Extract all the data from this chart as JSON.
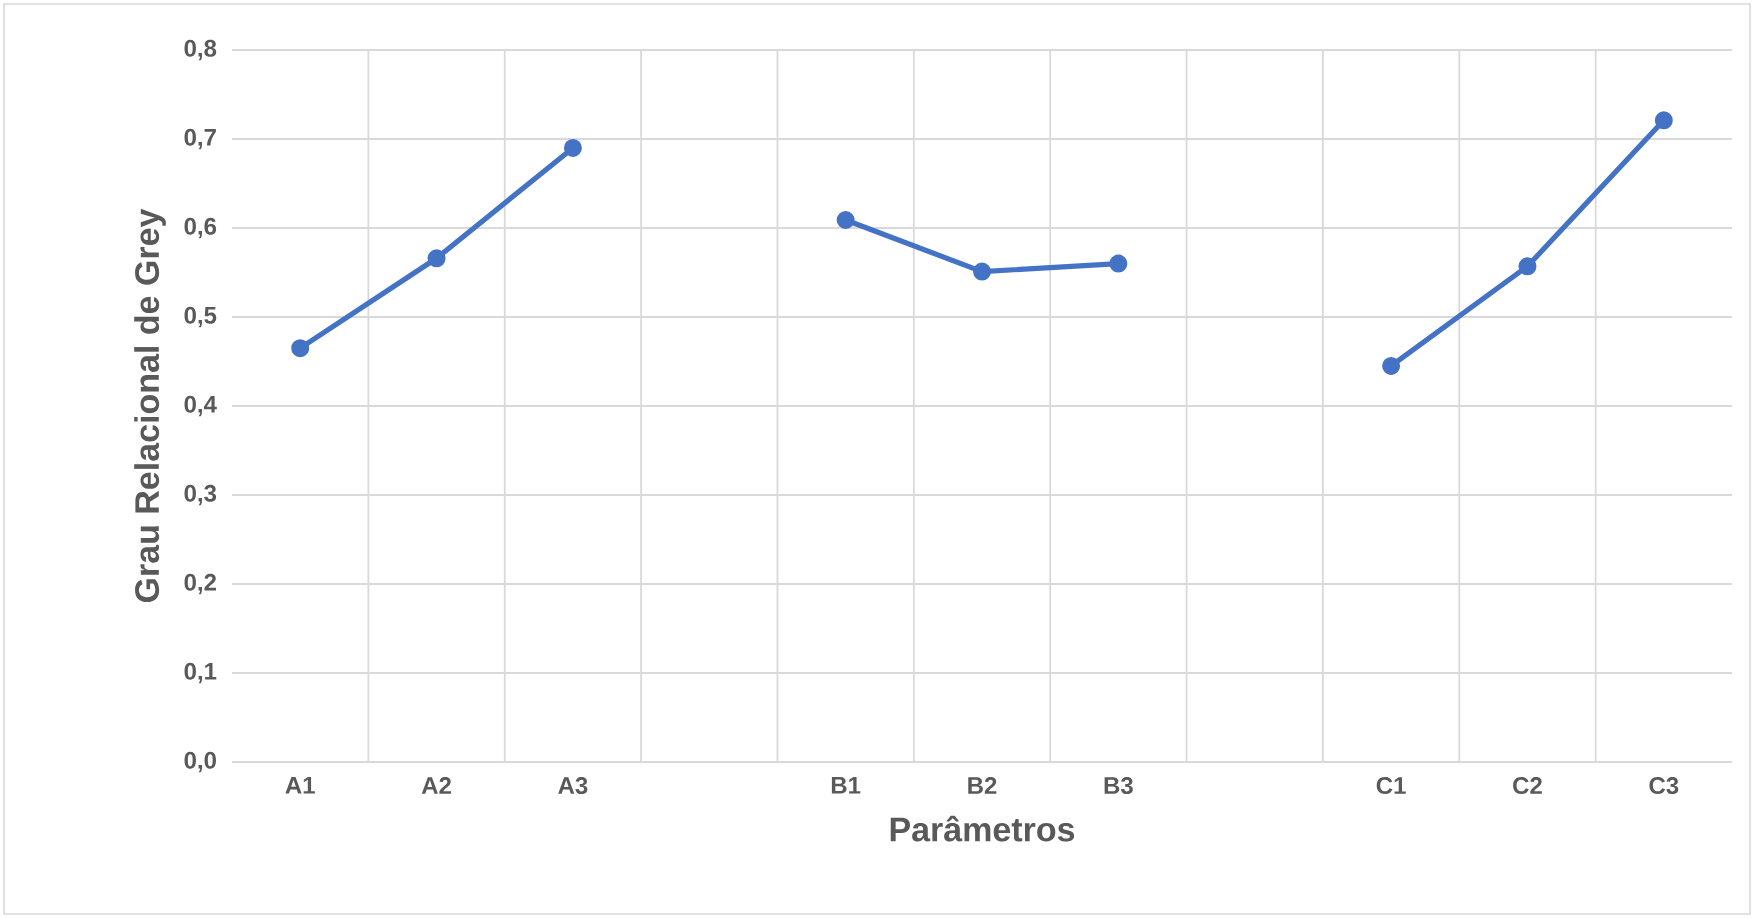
{
  "chart_data": {
    "type": "line",
    "xlabel": "Parâmetros",
    "ylabel": "Grau Relacional de Grey",
    "categories": [
      "A1",
      "A2",
      "A3",
      null,
      "B1",
      "B2",
      "B3",
      null,
      "C1",
      "C2",
      "C3"
    ],
    "series": [
      {
        "color": "#4472c4",
        "values": [
          0.465,
          0.566,
          0.69,
          null,
          0.609,
          0.551,
          0.56,
          null,
          0.445,
          0.557,
          0.721
        ]
      }
    ],
    "ylim": [
      0,
      0.8
    ],
    "yticks": [
      {
        "value": 0,
        "label": "0,0"
      },
      {
        "value": 0.1,
        "label": "0,1"
      },
      {
        "value": 0.2,
        "label": "0,2"
      },
      {
        "value": 0.3,
        "label": "0,3"
      },
      {
        "value": 0.4,
        "label": "0,4"
      },
      {
        "value": 0.5,
        "label": "0,5"
      },
      {
        "value": 0.6,
        "label": "0,6"
      },
      {
        "value": 0.7,
        "label": "0,7"
      },
      {
        "value": 0.8,
        "label": "0,8"
      }
    ],
    "grid": true,
    "marker": "circle",
    "line_style": "solid"
  }
}
